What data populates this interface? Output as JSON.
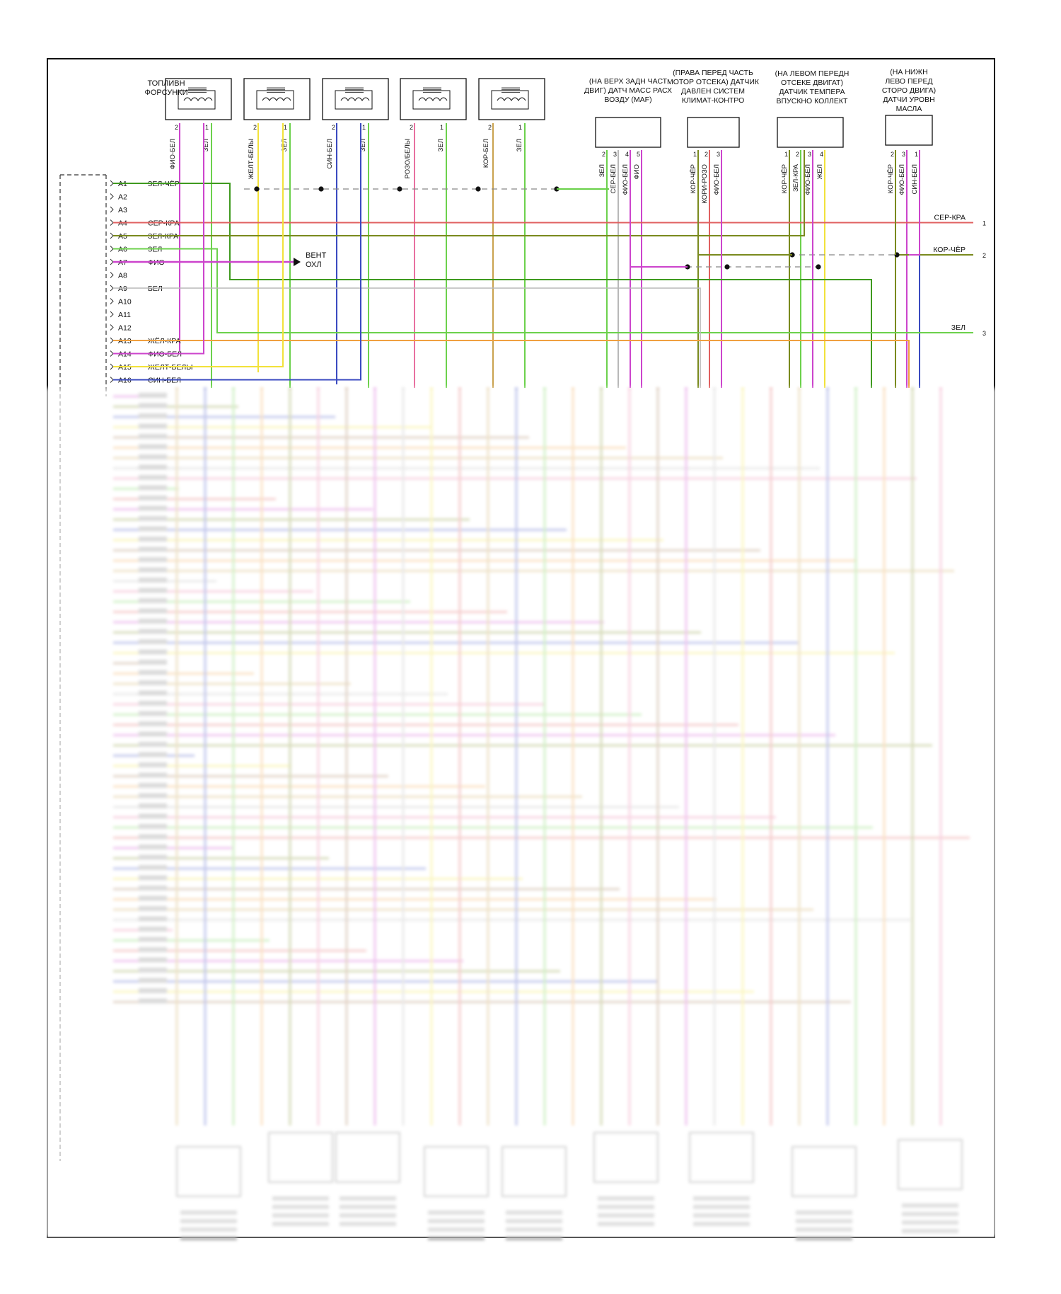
{
  "colors": {
    "green": "#6cd14c",
    "darkgreen": "#3f9a1f",
    "olive": "#7a8a1e",
    "red": "#e06060",
    "pink": "#e870a0",
    "violet": "#cc44cc",
    "yellow": "#f2e23a",
    "blue": "#3a4ac0",
    "brown": "#a0724a",
    "tan": "#c9a24e",
    "grey": "#b8b8b8",
    "orange": "#f0a040"
  },
  "injectors": {
    "title": "ТОПЛИВН ФОРСУНКИ",
    "units": [
      {
        "pin2": "2",
        "pin1": "1",
        "wire2": "ФИО-БЕЛ",
        "wire1": "ЗЕЛ"
      },
      {
        "pin2": "2",
        "pin1": "1",
        "wire2": "ЖЕЛТ-БЕЛЫ",
        "wire1": "ЗЕЛ"
      },
      {
        "pin2": "2",
        "pin1": "1",
        "wire2": "СИН-БЕЛ",
        "wire1": "ЗЕЛ"
      },
      {
        "pin2": "2",
        "pin1": "1",
        "wire2": "РОЗО/БЕЛЫ",
        "wire1": "ЗЕЛ"
      },
      {
        "pin2": "2",
        "pin1": "1",
        "wire2": "КОР-БЕЛ",
        "wire1": "ЗЕЛ"
      }
    ]
  },
  "sensors": [
    {
      "caption": "(НА ВЕРХ ЗАДН ЧАСТ ДВИГ) ДАТЧ МАСС РАСХ ВОЗДУ (MAF)",
      "pins": [
        "2",
        "3",
        "4",
        "5"
      ],
      "wires": [
        "ЗЕЛ",
        "СЕР-БЕЛ",
        "ФИО-БЕЛ",
        "ФИО"
      ]
    },
    {
      "caption": "(ПРАВА ПЕРЕД ЧАСТЬ МОТОР ОТСЕКА) ДАТЧИК ДАВЛЕН СИСТЕМ КЛИМАТ-КОНТРО",
      "pins": [
        "1",
        "2",
        "3"
      ],
      "wires": [
        "КОР-ЧЁР",
        "КОРИ-РОЗО",
        "ФИО-БЕЛ"
      ]
    },
    {
      "caption": "(НА ЛЕВОМ ПЕРЕДН ОТСЕКЕ ДВИГАТ) ДАТЧИК ТЕМПЕРА ВПУСКНО КОЛЛЕКТ",
      "pins": [
        "1",
        "2",
        "3",
        "4"
      ],
      "wires": [
        "КОР-ЧЁР",
        "ЗЕЛ-КРА",
        "ФИО-БЕЛ",
        "ЖЕЛ"
      ]
    },
    {
      "caption": "(НА НИЖН ЛЕВО ПЕРЕД СТОРО ДВИГА) ДАТЧИ УРОВН МАСЛА",
      "pins": [
        "2",
        "3",
        "1"
      ],
      "wires": [
        "КОР-ЧЁР",
        "ФИО-БЕЛ",
        "СИН-БЕЛ"
      ]
    }
  ],
  "connector_a": [
    {
      "pin": "A1",
      "wire": "ЗЕЛ-ЧЁР"
    },
    {
      "pin": "A2",
      "wire": ""
    },
    {
      "pin": "A3",
      "wire": ""
    },
    {
      "pin": "A4",
      "wire": "СЕР-КРА"
    },
    {
      "pin": "A5",
      "wire": "ЗЕЛ-КРА"
    },
    {
      "pin": "A6",
      "wire": "ЗЕЛ"
    },
    {
      "pin": "A7",
      "wire": "ФИО"
    },
    {
      "pin": "A8",
      "wire": ""
    },
    {
      "pin": "A9",
      "wire": "БЕЛ"
    },
    {
      "pin": "A10",
      "wire": ""
    },
    {
      "pin": "A11",
      "wire": ""
    },
    {
      "pin": "A12",
      "wire": ""
    },
    {
      "pin": "A13",
      "wire": "ЖЁЛ-КРА"
    },
    {
      "pin": "A14",
      "wire": "ФИО-БЕЛ"
    },
    {
      "pin": "A15",
      "wire": "ЖЕЛТ-БЕЛЫ"
    },
    {
      "pin": "A16",
      "wire": "СИН-БЕЛ"
    }
  ],
  "fan_label": "ВЕНТ ОХЛ",
  "right_refs": [
    {
      "wire": "СЕР-КРА",
      "num": "1"
    },
    {
      "wire": "КОР-ЧЁР",
      "num": "2"
    },
    {
      "wire": "ЗЕЛ",
      "num": "3"
    }
  ]
}
